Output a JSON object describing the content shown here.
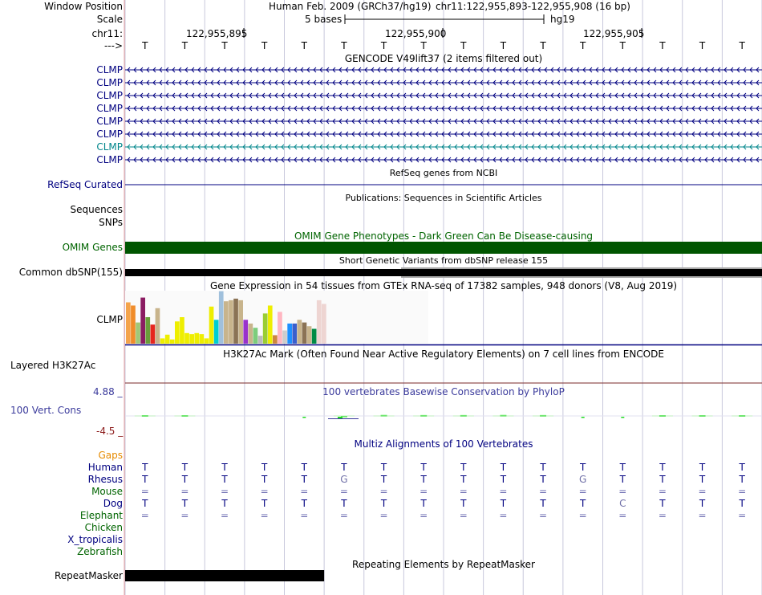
{
  "colors": {
    "navy": "#000080",
    "teal": "#00868b",
    "omim_green": "#005500",
    "gaps_orange": "#e68a00",
    "conservation_blue": "#3b3b9c",
    "conservation_neg": "#8b1a1a",
    "left_border": "#e8a0a0",
    "grid_line": "#c8c8dc",
    "conservation_bar": "#22dd22"
  },
  "header": {
    "window_position_label": "Window Position",
    "scale_label": "Scale",
    "chrom_label": "chr11:",
    "arrow_label": "--->",
    "assembly": "Human Feb. 2009 (GRCh37/hg19)",
    "position": "chr11:122,955,893-122,955,908 (16 bp)",
    "scale_text": "5 bases",
    "scale_db": "hg19",
    "coord_ticks": [
      "122,955,895",
      "122,955,900",
      "122,955,905"
    ]
  },
  "bases": [
    "T",
    "T",
    "T",
    "T",
    "T",
    "T",
    "T",
    "T",
    "T",
    "T",
    "T",
    "T",
    "T",
    "T",
    "T",
    "T"
  ],
  "gencode": {
    "title": "GENCODE V49lift37 (2 items filtered out)",
    "rows": [
      {
        "label": "CLMP",
        "color": "#000080"
      },
      {
        "label": "CLMP",
        "color": "#000080"
      },
      {
        "label": "CLMP",
        "color": "#000080"
      },
      {
        "label": "CLMP",
        "color": "#000080"
      },
      {
        "label": "CLMP",
        "color": "#000080"
      },
      {
        "label": "CLMP",
        "color": "#000080"
      },
      {
        "label": "CLMP",
        "color": "#00868b"
      },
      {
        "label": "CLMP",
        "color": "#000080"
      }
    ]
  },
  "refseq": {
    "title": "RefSeq genes from NCBI",
    "label": "RefSeq Curated"
  },
  "publications": {
    "title": "Publications: Sequences in Scientific Articles",
    "labels": [
      "Sequences",
      "SNPs"
    ]
  },
  "omim": {
    "title": "OMIM Gene Phenotypes - Dark Green Can Be Disease-causing",
    "label": "OMIM Genes"
  },
  "dbsnp": {
    "title": "Short Genetic Variants from dbSNP release 155",
    "label": "Common dbSNP(155)"
  },
  "gtex": {
    "title": "Gene Expression in 54 tissues from GTEx RNA-seq of 17382 samples, 948 donors (V8, Aug 2019)",
    "label": "CLMP",
    "bars": [
      {
        "v": 0.78,
        "c": "#f4a34b"
      },
      {
        "v": 0.72,
        "c": "#f08c2a"
      },
      {
        "v": 0.4,
        "c": "#a0c878"
      },
      {
        "v": 0.87,
        "c": "#8b1c62"
      },
      {
        "v": 0.5,
        "c": "#6a9e3a"
      },
      {
        "v": 0.36,
        "c": "#e6261f"
      },
      {
        "v": 0.67,
        "c": "#c8b48c"
      },
      {
        "v": 0.1,
        "c": "#eeee00"
      },
      {
        "v": 0.17,
        "c": "#eeee00"
      },
      {
        "v": 0.08,
        "c": "#eeee00"
      },
      {
        "v": 0.42,
        "c": "#eeee00"
      },
      {
        "v": 0.5,
        "c": "#eeee00"
      },
      {
        "v": 0.2,
        "c": "#eeee00"
      },
      {
        "v": 0.18,
        "c": "#eeee00"
      },
      {
        "v": 0.2,
        "c": "#eeee00"
      },
      {
        "v": 0.18,
        "c": "#eeee00"
      },
      {
        "v": 0.1,
        "c": "#eeee00"
      },
      {
        "v": 0.7,
        "c": "#eeee00"
      },
      {
        "v": 0.45,
        "c": "#00ced1"
      },
      {
        "v": 0.99,
        "c": "#a0c0dc"
      },
      {
        "v": 0.8,
        "c": "#c8b48c"
      },
      {
        "v": 0.82,
        "c": "#c8b48c"
      },
      {
        "v": 0.85,
        "c": "#8b7355"
      },
      {
        "v": 0.82,
        "c": "#c8b48c"
      },
      {
        "v": 0.45,
        "c": "#9932cc"
      },
      {
        "v": 0.38,
        "c": "#c8b48c"
      },
      {
        "v": 0.3,
        "c": "#7ccd7c"
      },
      {
        "v": 0.15,
        "c": "#bbbbbb"
      },
      {
        "v": 0.57,
        "c": "#9acd32"
      },
      {
        "v": 0.72,
        "c": "#eeee00"
      },
      {
        "v": 0.16,
        "c": "#cd853f"
      },
      {
        "v": 0.6,
        "c": "#ffb6c1"
      },
      {
        "v": 0.25,
        "c": "#cdcdcd"
      },
      {
        "v": 0.38,
        "c": "#1e90ff"
      },
      {
        "v": 0.38,
        "c": "#3a5fcd"
      },
      {
        "v": 0.45,
        "c": "#c8b48c"
      },
      {
        "v": 0.4,
        "c": "#8b7355"
      },
      {
        "v": 0.33,
        "c": "#c8b48c"
      },
      {
        "v": 0.28,
        "c": "#008b45"
      },
      {
        "v": 0.82,
        "c": "#eed5d2"
      },
      {
        "v": 0.75,
        "c": "#eed5d2"
      }
    ]
  },
  "h3k27ac": {
    "title": "H3K27Ac Mark (Often Found Near Active Regulatory Elements) on 7 cell lines from ENCODE",
    "label": "Layered H3K27Ac"
  },
  "conservation": {
    "title": "100 vertebrates Basewise Conservation by PhyloP",
    "label": "100 Vert. Cons",
    "max": "4.88 _",
    "min": "-4.5 _",
    "values": [
      0.5,
      0.5,
      0,
      0,
      -0.1,
      0.25,
      0.6,
      0.55,
      0.55,
      0.6,
      0.55,
      -0.1,
      -0.1,
      0.5,
      0.5,
      0.5
    ]
  },
  "multiz": {
    "title": "Multiz Alignments of 100 Vertebrates",
    "species": [
      {
        "label": "Gaps",
        "color": "#e68a00",
        "bases": []
      },
      {
        "label": "Human",
        "color": "#000080",
        "bases": [
          "T",
          "T",
          "T",
          "T",
          "T",
          "T",
          "T",
          "T",
          "T",
          "T",
          "T",
          "T",
          "T",
          "T",
          "T",
          "T"
        ]
      },
      {
        "label": "Rhesus",
        "color": "#000080",
        "bases": [
          "T",
          "T",
          "T",
          "T",
          "T",
          "G",
          "T",
          "T",
          "T",
          "T",
          "T",
          "G",
          "T",
          "T",
          "T",
          "T"
        ]
      },
      {
        "label": "Mouse",
        "color": "#006400",
        "bases": [
          "=",
          "=",
          "=",
          "=",
          "=",
          "=",
          "=",
          "=",
          "=",
          "=",
          "=",
          "=",
          "=",
          "=",
          "=",
          "="
        ]
      },
      {
        "label": "Dog",
        "color": "#000080",
        "bases": [
          "T",
          "T",
          "T",
          "T",
          "T",
          "T",
          "T",
          "T",
          "T",
          "T",
          "T",
          "T",
          "C",
          "T",
          "T",
          "T"
        ]
      },
      {
        "label": "Elephant",
        "color": "#006400",
        "bases": [
          "=",
          "=",
          "=",
          "=",
          "=",
          "=",
          "=",
          "=",
          "=",
          "=",
          "=",
          "=",
          "=",
          "=",
          "=",
          "="
        ]
      },
      {
        "label": "Chicken",
        "color": "#006400",
        "bases": []
      },
      {
        "label": "X_tropicalis",
        "color": "#000080",
        "bases": []
      },
      {
        "label": "Zebrafish",
        "color": "#006400",
        "bases": []
      }
    ]
  },
  "repeatmasker": {
    "title": "Repeating Elements by RepeatMasker",
    "label": "RepeatMasker",
    "covered_bases": 5
  }
}
